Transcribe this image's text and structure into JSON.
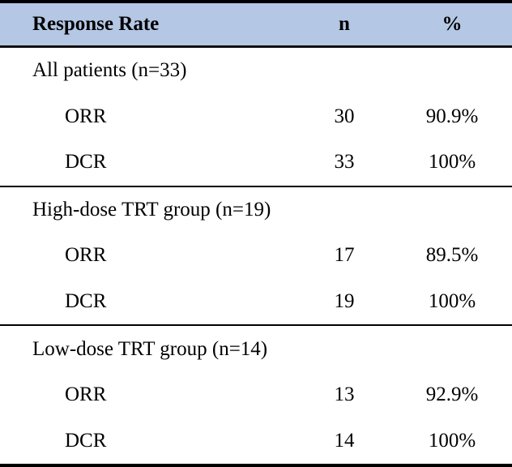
{
  "colors": {
    "header_bg": "#b4c7e4",
    "border": "#000000",
    "text": "#000000"
  },
  "table": {
    "headers": [
      "Response Rate",
      "n",
      "%"
    ],
    "sections": [
      {
        "label": "All patients (n=33)",
        "rows": [
          {
            "label": "ORR",
            "n": "30",
            "pct": "90.9%"
          },
          {
            "label": "DCR",
            "n": "33",
            "pct": "100%"
          }
        ]
      },
      {
        "label": "High-dose TRT group (n=19)",
        "rows": [
          {
            "label": "ORR",
            "n": "17",
            "pct": "89.5%"
          },
          {
            "label": "DCR",
            "n": "19",
            "pct": "100%"
          }
        ]
      },
      {
        "label": "Low-dose TRT group (n=14)",
        "rows": [
          {
            "label": "ORR",
            "n": "13",
            "pct": "92.9%"
          },
          {
            "label": "DCR",
            "n": "14",
            "pct": "100%"
          }
        ]
      }
    ]
  },
  "chart_data": {
    "type": "table",
    "title": "Response Rate",
    "columns": [
      "Response Rate",
      "n",
      "%"
    ],
    "groups": [
      {
        "group": "All patients",
        "group_n": 33,
        "ORR_n": 30,
        "ORR_pct": 90.9,
        "DCR_n": 33,
        "DCR_pct": 100
      },
      {
        "group": "High-dose TRT group",
        "group_n": 19,
        "ORR_n": 17,
        "ORR_pct": 89.5,
        "DCR_n": 19,
        "DCR_pct": 100
      },
      {
        "group": "Low-dose TRT group",
        "group_n": 14,
        "ORR_n": 13,
        "ORR_pct": 92.9,
        "DCR_n": 14,
        "DCR_pct": 100
      }
    ]
  }
}
